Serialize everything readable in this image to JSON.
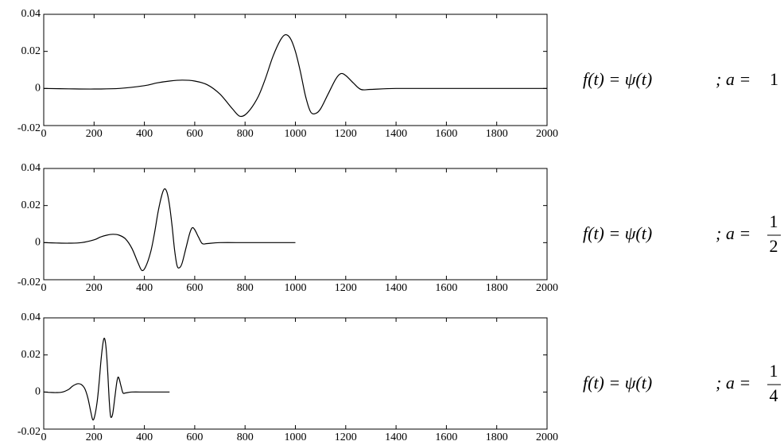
{
  "chart_data": [
    {
      "type": "line",
      "color": "#000000",
      "xlim": [
        0,
        2000
      ],
      "ylim": [
        -0.02,
        0.04
      ],
      "xticks": [
        0,
        200,
        400,
        600,
        800,
        1000,
        1200,
        1400,
        1600,
        1800,
        2000
      ],
      "yticks": [
        -0.02,
        0,
        0.02,
        0.04
      ],
      "x": [
        0,
        100,
        200,
        300,
        400,
        450,
        500,
        550,
        600,
        650,
        700,
        750,
        780,
        810,
        850,
        880,
        910,
        940,
        960,
        980,
        1000,
        1020,
        1040,
        1060,
        1080,
        1100,
        1130,
        1160,
        1180,
        1200,
        1230,
        1260,
        1300,
        1400,
        1600,
        1800,
        2000
      ],
      "values": [
        0,
        -0.0002,
        -0.0003,
        0,
        0.0015,
        0.003,
        0.004,
        0.0045,
        0.004,
        0.002,
        -0.003,
        -0.011,
        -0.015,
        -0.013,
        -0.005,
        0.005,
        0.017,
        0.026,
        0.029,
        0.027,
        0.02,
        0.009,
        -0.004,
        -0.0125,
        -0.0135,
        -0.011,
        -0.003,
        0.005,
        0.008,
        0.007,
        0.003,
        -0.0005,
        -0.0005,
        0,
        0,
        0,
        0
      ],
      "annotation": {
        "equation": "f(t) = ψ(t)",
        "scale_prefix": ";  a =",
        "scale": 1
      }
    },
    {
      "type": "line",
      "color": "#000000",
      "xlim": [
        0,
        2000
      ],
      "ylim": [
        -0.02,
        0.04
      ],
      "xticks": [
        0,
        200,
        400,
        600,
        800,
        1000,
        1200,
        1400,
        1600,
        1800,
        2000
      ],
      "yticks": [
        -0.02,
        0,
        0.02,
        0.04
      ],
      "x": [
        0,
        50,
        100,
        150,
        200,
        225,
        250,
        275,
        300,
        325,
        350,
        375,
        390,
        405,
        425,
        440,
        455,
        470,
        480,
        490,
        500,
        510,
        520,
        530,
        540,
        550,
        565,
        580,
        590,
        600,
        615,
        630,
        650,
        700,
        800,
        900,
        1000
      ],
      "values": [
        0,
        -0.0002,
        -0.0003,
        0,
        0.0015,
        0.003,
        0.004,
        0.0045,
        0.004,
        0.002,
        -0.003,
        -0.011,
        -0.015,
        -0.013,
        -0.005,
        0.005,
        0.017,
        0.026,
        0.029,
        0.027,
        0.02,
        0.009,
        -0.004,
        -0.0125,
        -0.0135,
        -0.011,
        -0.003,
        0.005,
        0.008,
        0.007,
        0.003,
        -0.0005,
        -0.0005,
        0,
        0,
        0,
        0
      ],
      "annotation": {
        "equation": "f(t) = ψ(t)",
        "scale_prefix": ";  a =",
        "numerator": 1,
        "denominator": 2
      }
    },
    {
      "type": "line",
      "color": "#000000",
      "xlim": [
        0,
        2000
      ],
      "ylim": [
        -0.02,
        0.04
      ],
      "xticks": [
        0,
        200,
        400,
        600,
        800,
        1000,
        1200,
        1400,
        1600,
        1800,
        2000
      ],
      "yticks": [
        -0.02,
        0,
        0.02,
        0.04
      ],
      "x": [
        0,
        25,
        50,
        75,
        100,
        112.5,
        125,
        137.5,
        150,
        162.5,
        175,
        187.5,
        195,
        202.5,
        212.5,
        220,
        227.5,
        235,
        240,
        245,
        250,
        255,
        260,
        265,
        270,
        275,
        282.5,
        290,
        295,
        300,
        307.5,
        315,
        325,
        350,
        400,
        450,
        500
      ],
      "values": [
        0,
        -0.0002,
        -0.0003,
        0,
        0.0015,
        0.003,
        0.004,
        0.0045,
        0.004,
        0.002,
        -0.003,
        -0.011,
        -0.015,
        -0.013,
        -0.005,
        0.005,
        0.017,
        0.026,
        0.029,
        0.027,
        0.02,
        0.009,
        -0.004,
        -0.0125,
        -0.0135,
        -0.011,
        -0.003,
        0.005,
        0.008,
        0.007,
        0.003,
        -0.0005,
        -0.0005,
        0,
        0,
        0,
        0
      ],
      "annotation": {
        "equation": "f(t) = ψ(t)",
        "scale_prefix": ";  a =",
        "numerator": 1,
        "denominator": 4
      }
    }
  ]
}
